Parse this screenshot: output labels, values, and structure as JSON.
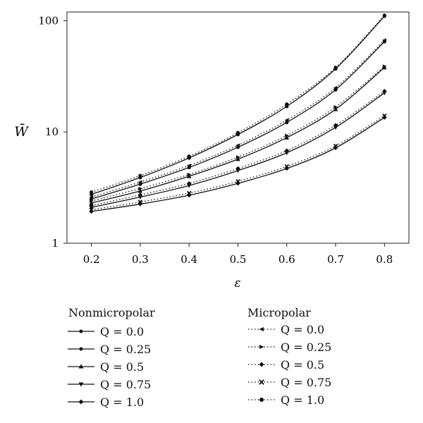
{
  "chart_data": {
    "type": "line",
    "xlabel": "ε",
    "ylabel": "W̄",
    "yscale": "log",
    "ylim": [
      1,
      120
    ],
    "xlim": [
      0.15,
      0.85
    ],
    "x": [
      0.2,
      0.3,
      0.4,
      0.5,
      0.6,
      0.7,
      0.8
    ],
    "x_ticks": [
      "0.2",
      "0.3",
      "0.4",
      "0.5",
      "0.6",
      "0.7",
      "0.8"
    ],
    "y_ticks": [
      "1",
      "10",
      "100"
    ],
    "series": [
      {
        "group": "Nonmicropolar",
        "name": "Q = 0.0",
        "style": "solid",
        "values": [
          2.75,
          3.9,
          5.85,
          9.5,
          17.0,
          37.0,
          110.0
        ]
      },
      {
        "group": "Nonmicropolar",
        "name": "Q = 0.25",
        "style": "solid",
        "values": [
          2.5,
          3.4,
          4.8,
          7.3,
          12.2,
          24.0,
          65.0
        ]
      },
      {
        "group": "Nonmicropolar",
        "name": "Q = 0.5",
        "style": "solid",
        "values": [
          2.3,
          2.95,
          4.0,
          5.7,
          8.9,
          16.0,
          38.0
        ]
      },
      {
        "group": "Nonmicropolar",
        "name": "Q = 0.75",
        "style": "solid",
        "values": [
          2.1,
          2.6,
          3.3,
          4.5,
          6.5,
          11.0,
          22.5
        ]
      },
      {
        "group": "Nonmicropolar",
        "name": "Q = 1.0",
        "style": "solid",
        "values": [
          1.93,
          2.25,
          2.7,
          3.45,
          4.7,
          7.2,
          13.5
        ]
      },
      {
        "group": "Micropolar",
        "name": "Q = 0.0",
        "style": "dotted",
        "values": [
          2.88,
          4.05,
          6.05,
          9.85,
          17.8,
          38.0,
          112.0
        ]
      },
      {
        "group": "Micropolar",
        "name": "Q = 0.25",
        "style": "dotted",
        "values": [
          2.6,
          3.55,
          5.0,
          7.6,
          12.8,
          25.0,
          67.0
        ]
      },
      {
        "group": "Micropolar",
        "name": "Q = 0.5",
        "style": "dotted",
        "values": [
          2.4,
          3.1,
          4.15,
          5.95,
          9.3,
          16.8,
          39.0
        ]
      },
      {
        "group": "Micropolar",
        "name": "Q = 0.75",
        "style": "dotted",
        "values": [
          2.18,
          2.72,
          3.45,
          4.7,
          6.8,
          11.5,
          23.3
        ]
      },
      {
        "group": "Micropolar",
        "name": "Q = 1.0",
        "style": "dotted",
        "values": [
          2.0,
          2.35,
          2.82,
          3.6,
          4.9,
          7.5,
          14.0
        ]
      }
    ]
  },
  "legend": {
    "nonmicropolar": {
      "title": "Nonmicropolar",
      "items": [
        {
          "label": "Q = 0.0"
        },
        {
          "label": "Q = 0.25"
        },
        {
          "label": "Q = 0.5"
        },
        {
          "label": "Q = 0.75"
        },
        {
          "label": "Q = 1.0"
        }
      ]
    },
    "micropolar": {
      "title": "Micropolar",
      "items": [
        {
          "label": "Q = 0.0"
        },
        {
          "label": "Q = 0.25"
        },
        {
          "label": "Q = 0.5"
        },
        {
          "label": "Q = 0.75"
        },
        {
          "label": "Q = 1.0"
        }
      ]
    }
  }
}
